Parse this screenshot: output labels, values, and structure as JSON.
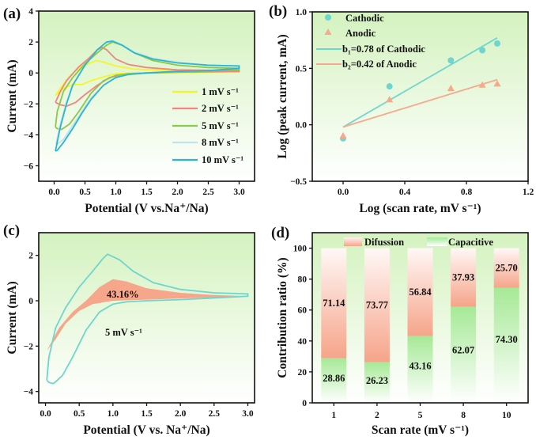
{
  "chart_data": [
    {
      "panel": "(a)",
      "type": "line",
      "xlabel": "Potential (V vs.Na⁺/Na)",
      "ylabel": "Current (mA)",
      "xlim": [
        -0.25,
        3.25
      ],
      "ylim": [
        -7,
        4
      ],
      "xticks": [
        "0.0",
        "0.5",
        "1.0",
        "1.5",
        "2.0",
        "2.5",
        "3.0"
      ],
      "yticks": [
        "−6",
        "−4",
        "−2",
        "0",
        "2",
        "4"
      ],
      "legend_position": "bottom-right",
      "series": [
        {
          "name": "1 mV s⁻¹",
          "color": "#f7f52a",
          "points": [
            [
              0.02,
              -1.45
            ],
            [
              0.1,
              -1.0
            ],
            [
              0.25,
              -0.2
            ],
            [
              0.4,
              0.3
            ],
            [
              0.55,
              0.6
            ],
            [
              0.68,
              0.8
            ],
            [
              0.8,
              0.7
            ],
            [
              1.0,
              0.45
            ],
            [
              1.3,
              0.25
            ],
            [
              2.0,
              0.12
            ],
            [
              3.0,
              0.08
            ],
            [
              3.0,
              0.05
            ],
            [
              2.0,
              0.02
            ],
            [
              1.2,
              0.0
            ],
            [
              1.0,
              -0.05
            ],
            [
              0.8,
              -0.25
            ],
            [
              0.6,
              -0.5
            ],
            [
              0.45,
              -0.75
            ],
            [
              0.3,
              -0.75
            ],
            [
              0.15,
              -1.0
            ],
            [
              0.02,
              -1.45
            ]
          ]
        },
        {
          "name": "2 mV s⁻¹",
          "color": "#f28482",
          "points": [
            [
              0.02,
              -1.9
            ],
            [
              0.1,
              -1.2
            ],
            [
              0.2,
              -0.5
            ],
            [
              0.4,
              0.4
            ],
            [
              0.55,
              0.9
            ],
            [
              0.7,
              1.5
            ],
            [
              0.78,
              1.65
            ],
            [
              0.85,
              1.5
            ],
            [
              1.0,
              0.9
            ],
            [
              1.2,
              0.55
            ],
            [
              1.5,
              0.35
            ],
            [
              2.0,
              0.2
            ],
            [
              3.0,
              0.15
            ],
            [
              3.0,
              0.1
            ],
            [
              2.0,
              0.05
            ],
            [
              1.5,
              0.0
            ],
            [
              1.1,
              -0.1
            ],
            [
              0.9,
              -0.3
            ],
            [
              0.7,
              -0.8
            ],
            [
              0.5,
              -1.4
            ],
            [
              0.35,
              -1.9
            ],
            [
              0.2,
              -2.15
            ],
            [
              0.1,
              -2.05
            ],
            [
              0.02,
              -1.9
            ]
          ]
        },
        {
          "name": "5 mV s⁻¹",
          "color": "#8cc84b",
          "points": [
            [
              0.02,
              -3.5
            ],
            [
              0.05,
              -2.5
            ],
            [
              0.15,
              -1.2
            ],
            [
              0.3,
              -0.3
            ],
            [
              0.5,
              0.6
            ],
            [
              0.7,
              1.3
            ],
            [
              0.85,
              1.8
            ],
            [
              0.95,
              2.0
            ],
            [
              1.1,
              1.8
            ],
            [
              1.3,
              1.3
            ],
            [
              1.6,
              0.8
            ],
            [
              2.0,
              0.5
            ],
            [
              2.5,
              0.35
            ],
            [
              3.0,
              0.3
            ],
            [
              3.0,
              0.2
            ],
            [
              2.0,
              0.05
            ],
            [
              1.5,
              0.0
            ],
            [
              1.2,
              -0.05
            ],
            [
              1.0,
              -0.15
            ],
            [
              0.8,
              -0.5
            ],
            [
              0.6,
              -1.3
            ],
            [
              0.4,
              -2.5
            ],
            [
              0.25,
              -3.3
            ],
            [
              0.12,
              -3.65
            ],
            [
              0.05,
              -3.6
            ],
            [
              0.02,
              -3.5
            ]
          ]
        },
        {
          "name": "8 mV s⁻¹",
          "color": "#bfe3f0",
          "points": [
            [
              0.03,
              -4.6
            ],
            [
              0.1,
              -3.3
            ],
            [
              0.2,
              -1.9
            ],
            [
              0.3,
              -0.8
            ],
            [
              0.5,
              0.5
            ],
            [
              0.7,
              1.5
            ],
            [
              0.85,
              2.0
            ],
            [
              0.93,
              2.1
            ],
            [
              1.1,
              1.85
            ],
            [
              1.3,
              1.35
            ],
            [
              1.6,
              0.95
            ],
            [
              2.0,
              0.7
            ],
            [
              2.5,
              0.5
            ],
            [
              3.0,
              0.45
            ],
            [
              3.0,
              0.3
            ],
            [
              2.5,
              0.15
            ],
            [
              2.0,
              0.1
            ],
            [
              1.5,
              0.0
            ],
            [
              1.2,
              -0.1
            ],
            [
              1.0,
              -0.3
            ],
            [
              0.8,
              -0.8
            ],
            [
              0.6,
              -1.6
            ],
            [
              0.45,
              -2.5
            ],
            [
              0.3,
              -3.4
            ],
            [
              0.15,
              -4.3
            ],
            [
              0.05,
              -4.6
            ],
            [
              0.03,
              -4.6
            ]
          ]
        },
        {
          "name": "10 mV s⁻¹",
          "color": "#2bb6cf",
          "points": [
            [
              0.02,
              -5.05
            ],
            [
              0.1,
              -3.5
            ],
            [
              0.2,
              -2.0
            ],
            [
              0.3,
              -0.8
            ],
            [
              0.5,
              0.5
            ],
            [
              0.7,
              1.5
            ],
            [
              0.85,
              2.0
            ],
            [
              0.95,
              2.05
            ],
            [
              1.1,
              1.8
            ],
            [
              1.3,
              1.3
            ],
            [
              1.6,
              0.9
            ],
            [
              2.0,
              0.65
            ],
            [
              2.5,
              0.5
            ],
            [
              3.0,
              0.45
            ],
            [
              3.0,
              0.3
            ],
            [
              2.5,
              0.15
            ],
            [
              2.0,
              0.1
            ],
            [
              1.5,
              0.0
            ],
            [
              1.2,
              -0.1
            ],
            [
              1.0,
              -0.3
            ],
            [
              0.8,
              -0.8
            ],
            [
              0.6,
              -1.7
            ],
            [
              0.45,
              -2.6
            ],
            [
              0.3,
              -3.6
            ],
            [
              0.15,
              -4.5
            ],
            [
              0.05,
              -5.0
            ],
            [
              0.02,
              -5.05
            ]
          ]
        }
      ]
    },
    {
      "panel": "(b)",
      "type": "scatter",
      "xlabel": "Log (scan rate, mV s⁻¹)",
      "ylabel": "Log (peak current, mA)",
      "xlim": [
        -0.2,
        1.2
      ],
      "ylim": [
        -0.5,
        1.0
      ],
      "xticks": [
        "0.0",
        "0.4",
        "0.8",
        "1.2"
      ],
      "xtick_values": [
        0,
        0.4,
        0.8,
        1.2
      ],
      "yticks": [
        "−0.5",
        "0.0",
        "0.5",
        "1.0"
      ],
      "ytick_values": [
        -0.5,
        0,
        0.5,
        1.0
      ],
      "legend_position": "top-left",
      "series": [
        {
          "name": "Cathodic",
          "color": "#6fd6cf",
          "marker": "circle",
          "x": [
            0,
            0.301,
            0.699,
            0.903,
            1.0
          ],
          "y": [
            -0.12,
            0.34,
            0.57,
            0.66,
            0.72
          ]
        },
        {
          "name": "Anodic",
          "color": "#f7a98c",
          "marker": "triangle",
          "x": [
            0,
            0.301,
            0.699,
            0.903,
            1.0
          ],
          "y": [
            -0.1,
            0.22,
            0.32,
            0.35,
            0.36
          ]
        }
      ],
      "fits": [
        {
          "name": "b₁=0.78 of Cathodic",
          "color": "#6fd6cf",
          "x": [
            0,
            1.0
          ],
          "y": [
            -0.02,
            0.77
          ]
        },
        {
          "name": "b₂=0.42 of Anodic",
          "color": "#f7a98c",
          "x": [
            0,
            1.0
          ],
          "y": [
            -0.02,
            0.4
          ]
        }
      ]
    },
    {
      "panel": "(c)",
      "type": "area",
      "xlabel": "Potential (V vs. Na⁺/Na)",
      "ylabel": "Current (mA)",
      "xlim": [
        -0.1,
        3.1
      ],
      "ylim": [
        -4.5,
        3.0
      ],
      "xticks": [
        "0.0",
        "0.5",
        "1.0",
        "1.5",
        "2.0",
        "2.5",
        "3.0"
      ],
      "yticks": [
        "−4",
        "−2",
        "0",
        "2"
      ],
      "annotation_percent": "43.16%",
      "annotation_rate": "5 mV s⁻¹",
      "loop_color": "#6fd6cf",
      "fill_color": "#f6a68a",
      "loop": [
        [
          0.02,
          -3.5
        ],
        [
          0.05,
          -2.5
        ],
        [
          0.15,
          -1.2
        ],
        [
          0.3,
          -0.3
        ],
        [
          0.5,
          0.6
        ],
        [
          0.7,
          1.3
        ],
        [
          0.85,
          1.85
        ],
        [
          0.92,
          2.05
        ],
        [
          1.1,
          1.8
        ],
        [
          1.3,
          1.3
        ],
        [
          1.6,
          0.8
        ],
        [
          2.0,
          0.5
        ],
        [
          2.5,
          0.35
        ],
        [
          3.0,
          0.3
        ],
        [
          3.0,
          0.2
        ],
        [
          2.0,
          0.05
        ],
        [
          1.5,
          0.0
        ],
        [
          1.2,
          -0.05
        ],
        [
          1.0,
          -0.15
        ],
        [
          0.8,
          -0.5
        ],
        [
          0.6,
          -1.3
        ],
        [
          0.4,
          -2.5
        ],
        [
          0.25,
          -3.3
        ],
        [
          0.12,
          -3.65
        ],
        [
          0.05,
          -3.6
        ],
        [
          0.02,
          -3.5
        ]
      ],
      "capacitive_region": [
        [
          0.02,
          -2.2
        ],
        [
          0.2,
          -1.2
        ],
        [
          0.4,
          -0.5
        ],
        [
          0.6,
          0.0
        ],
        [
          0.8,
          0.6
        ],
        [
          1.0,
          0.95
        ],
        [
          1.2,
          0.85
        ],
        [
          1.5,
          0.55
        ],
        [
          2.0,
          0.35
        ],
        [
          2.5,
          0.25
        ],
        [
          3.0,
          0.2
        ],
        [
          2.0,
          0.1
        ],
        [
          1.5,
          0.05
        ],
        [
          1.0,
          0.0
        ],
        [
          0.7,
          -0.15
        ],
        [
          0.5,
          -0.45
        ],
        [
          0.3,
          -1.0
        ],
        [
          0.15,
          -1.7
        ],
        [
          0.02,
          -2.2
        ]
      ]
    },
    {
      "panel": "(d)",
      "type": "bar",
      "stacked": true,
      "xlabel": "Scan rate (mV s⁻¹)",
      "ylabel": "Contribution ratio (%)",
      "ylim": [
        0,
        110
      ],
      "yticks": [
        "0",
        "20",
        "40",
        "60",
        "80",
        "100"
      ],
      "categories": [
        "1",
        "2",
        "5",
        "8",
        "10"
      ],
      "legend_position": "top",
      "series": [
        {
          "name": "Capacitive",
          "color": "#9fe58f",
          "values": [
            28.86,
            26.23,
            43.16,
            62.07,
            74.3
          ],
          "labels": [
            "28.86",
            "26.23",
            "43.16",
            "62.07",
            "74.30"
          ]
        },
        {
          "name": "Difussion",
          "color": "#f6a68a",
          "values": [
            71.14,
            73.77,
            56.84,
            37.93,
            25.7
          ],
          "labels": [
            "71.14",
            "73.77",
            "56.84",
            "37.93",
            "25.70"
          ]
        }
      ]
    }
  ],
  "colors": {
    "bg_top": "#d6f3c2",
    "bg_bottom": "#ffffff"
  }
}
